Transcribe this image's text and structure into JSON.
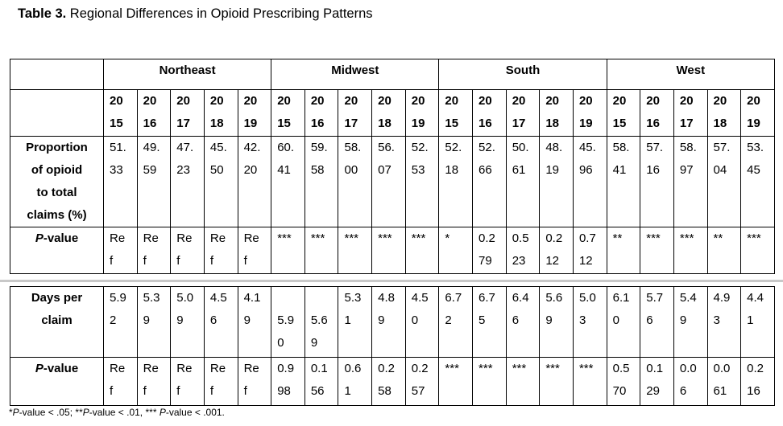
{
  "title": {
    "bold": "Table 3.",
    "rest": " Regional Differences in Opioid Prescribing Patterns"
  },
  "header": {
    "regions": [
      "Northeast",
      "Midwest",
      "South",
      "West"
    ],
    "years": [
      "2015",
      "2016",
      "2017",
      "2018",
      "2019"
    ],
    "years_display": [
      "20\n15",
      "20\n16",
      "20\n17",
      "20\n18",
      "20\n19"
    ]
  },
  "table1": {
    "rows": [
      {
        "id": "proportion",
        "label_segments": [
          {
            "text": "Proportion\nof opioid\nto total\nclaims (%)"
          }
        ],
        "cells": [
          "51.\n33",
          "49.\n59",
          "47.\n23",
          "45.\n50",
          "42.\n20",
          "60.\n41",
          "59.\n58",
          "58.\n00",
          "56.\n07",
          "52.\n53",
          "52.\n18",
          "52.\n66",
          "50.\n61",
          "48.\n19",
          "45.\n96",
          "58.\n41",
          "57.\n16",
          "58.\n97",
          "57.\n04",
          "53.\n45"
        ]
      },
      {
        "id": "pvalue-proportion",
        "label_segments": [
          {
            "text": "P",
            "italic": true
          },
          {
            "text": "-value"
          }
        ],
        "cells": [
          "Re\nf",
          "Re\nf",
          "Re\nf",
          "Re\nf",
          "Re\nf",
          "***",
          "***",
          "***",
          "***",
          "***",
          "*",
          "0.2\n79",
          "0.5\n23",
          "0.2\n12",
          "0.7\n12",
          "**",
          "***",
          "***",
          "**",
          "***"
        ]
      }
    ]
  },
  "table2": {
    "rows": [
      {
        "id": "days-per-claim",
        "label_segments": [
          {
            "text": "Days per\nclaim"
          }
        ],
        "cells": [
          "5.9\n2",
          "5.3\n9",
          "5.0\n9",
          "4.5\n6",
          "4.1\n9",
          "\n5.9\n0",
          "\n5.6\n9",
          "5.3\n1",
          "4.8\n9",
          "4.5\n0",
          "6.7\n2",
          "6.7\n5",
          "6.4\n6",
          "5.6\n9",
          "5.0\n3",
          "6.1\n0",
          "5.7\n6",
          "5.4\n9",
          "4.9\n3",
          "4.4\n1"
        ]
      },
      {
        "id": "pvalue-days",
        "label_segments": [
          {
            "text": "P",
            "italic": true
          },
          {
            "text": "-value"
          }
        ],
        "cells": [
          "Re\nf",
          "Re\nf",
          "Re\nf",
          "Re\nf",
          "Re\nf",
          "0.9\n98",
          "0.1\n56",
          "0.6\n1",
          "0.2\n58",
          "0.2\n57",
          "***",
          "***",
          "***",
          "***",
          "***",
          "0.5\n70",
          "0.1\n29",
          "0.0\n6",
          "0.0\n61",
          "0.2\n16"
        ]
      }
    ]
  },
  "footnote": {
    "segments": [
      {
        "text": "*"
      },
      {
        "text": "P",
        "italic": true
      },
      {
        "text": "-value < .05; **"
      },
      {
        "text": "P",
        "italic": true
      },
      {
        "text": "-value < .01, *** "
      },
      {
        "text": "P",
        "italic": true
      },
      {
        "text": "-value < .001."
      }
    ]
  }
}
